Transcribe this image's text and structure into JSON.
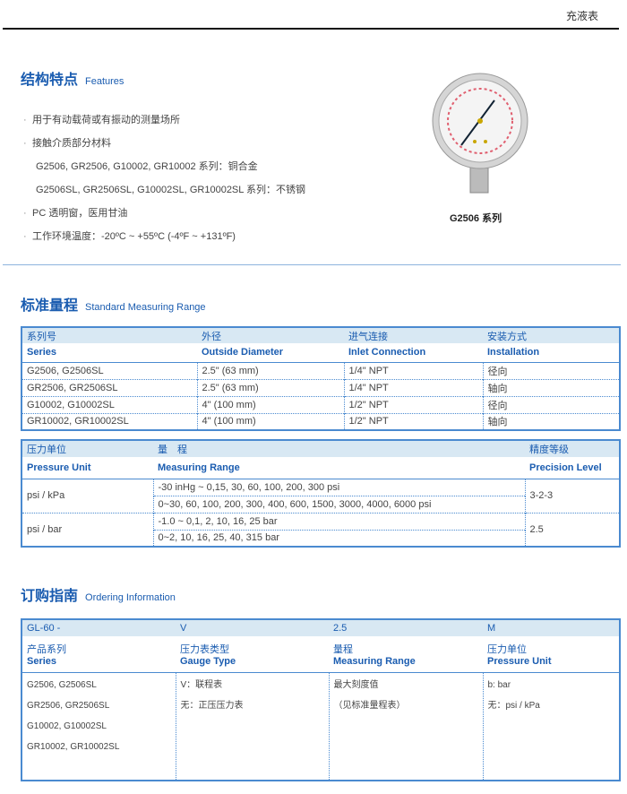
{
  "header": {
    "title": "充液表"
  },
  "features": {
    "title_cn": "结构特点",
    "title_en": "Features",
    "items": [
      "用于有动载荷或有振动的测量场所",
      "接触介质部分材料",
      "PC 透明窗，医用甘油",
      "工作环境温度：-20ºC ~ +55ºC (-4ºF ~ +131ºF)"
    ],
    "materials": [
      "G2506, GR2506, G10002, GR10002 系列：铜合金",
      "G2506SL, GR2506SL, G10002SL, GR10002SL 系列：不锈钢"
    ],
    "image_caption": "G2506 系列"
  },
  "standard_range": {
    "title_cn": "标准量程",
    "title_en": "Standard Measuring Range",
    "table1": {
      "headers_cn": [
        "系列号",
        "外径",
        "进气连接",
        "安装方式"
      ],
      "headers_en": [
        "Series",
        "Outside Diameter",
        "Inlet  Connection",
        "Installation"
      ],
      "rows": [
        [
          "G2506, G2506SL",
          "2.5\" (63 mm)",
          "1/4\" NPT",
          "径向"
        ],
        [
          "GR2506, GR2506SL",
          "2.5\" (63 mm)",
          "1/4\" NPT",
          "轴向"
        ],
        [
          "G10002, G10002SL",
          "4\" (100 mm)",
          "1/2\" NPT",
          "径向"
        ],
        [
          "GR10002, GR10002SL",
          "4\" (100 mm)",
          "1/2\" NPT",
          "轴向"
        ]
      ]
    },
    "table2": {
      "headers_cn": [
        "压力单位",
        "量　程",
        "精度等级"
      ],
      "headers_en": [
        "Pressure Unit",
        "Measuring Range",
        "Precision Level"
      ],
      "groups": [
        {
          "unit": "psi / kPa",
          "ranges": [
            "-30 inHg ~ 0,15, 30, 60, 100, 200, 300 psi",
            "0~30, 60, 100, 200, 300, 400, 600, 1500, 3000, 4000, 6000 psi"
          ],
          "precision": "3-2-3"
        },
        {
          "unit": "psi / bar",
          "ranges": [
            "-1.0 ~ 0,1, 2, 10, 16, 25 bar",
            "0~2, 10, 16, 25, 40, 315 bar"
          ],
          "precision": "2.5"
        }
      ]
    }
  },
  "ordering": {
    "title_cn": "订购指南",
    "title_en": "Ordering Information",
    "code": [
      "GL-60  -",
      "V",
      "2.5",
      "M"
    ],
    "headers_cn": [
      "产品系列",
      "压力表类型",
      "量程",
      "压力单位"
    ],
    "headers_en": [
      "Series",
      "Gauge Type",
      "Measuring Range",
      "Pressure Unit"
    ],
    "series": [
      "G2506, G2506SL",
      "GR2506, GR2506SL",
      "G10002, G10002SL",
      "GR10002, GR10002SL"
    ],
    "gauge_type": [
      "V：联程表",
      "无：正压压力表"
    ],
    "range": [
      "最大刻度值",
      "（见标准量程表）"
    ],
    "unit": [
      "b: bar",
      "无：psi / kPa"
    ]
  },
  "colors": {
    "accent": "#1a5cb0",
    "header_bg": "#d8e8f3",
    "border": "#4a8ad0"
  }
}
